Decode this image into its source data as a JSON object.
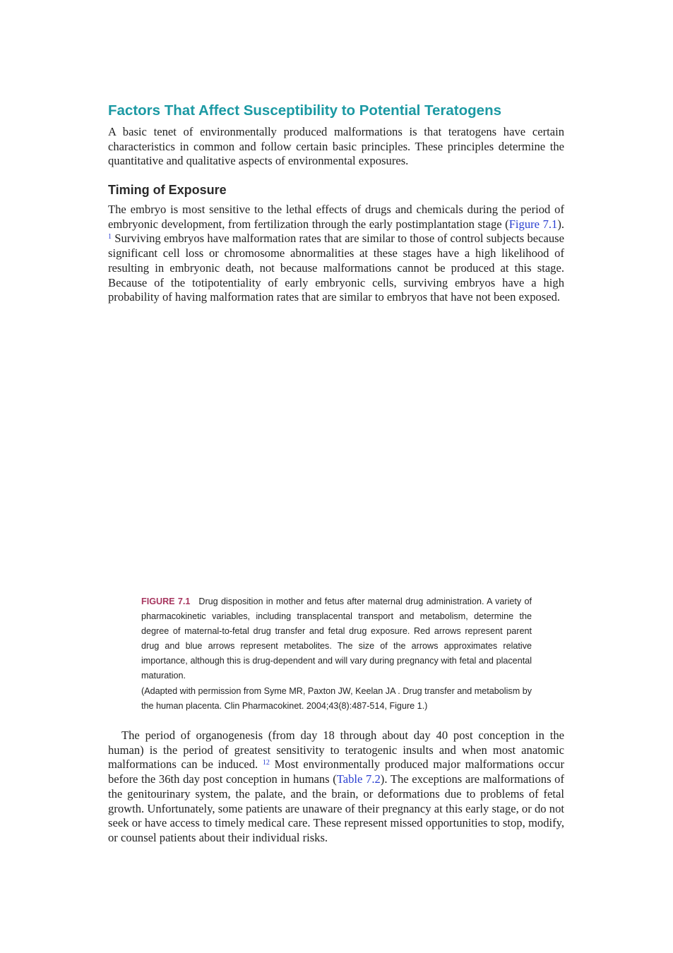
{
  "section": {
    "heading": "Factors That Affect Susceptibility to Potential Teratogens",
    "paragraph": "A basic tenet of environmentally produced malformations is that teratogens have certain characteristics in common and follow certain basic principles. These principles determine the quantitative and qualitative aspects of environmental exposures."
  },
  "subsection": {
    "heading": "Timing of Exposure",
    "parts": [
      "The embryo is most sensitive to the lethal effects of drugs and chemicals during the period of embryonic development, from fertilization through the early postimplantation stage (",
      "Figure 7.1",
      "). ",
      "1",
      " Surviving embryos have malformation rates that are similar to those of control subjects because significant cell loss or chromosome abnormalities at these stages have a high likelihood of resulting in embryonic death, not because malformations cannot be produced at this stage. Because of the totipotentiality of early embryonic cells, surviving embryos have a high probability of having malformation rates that are similar to embryos that have not been exposed."
    ]
  },
  "figure": {
    "label": "FIGURE 7.1",
    "caption": "Drug disposition in mother and fetus after maternal drug administration. A variety of pharmacokinetic variables, including transplacental transport and metabolism, determine the degree of maternal-to-fetal drug transfer and fetal drug exposure. Red arrows represent parent drug and blue arrows represent metabolites. The size of the arrows approximates relative importance, although this is drug-dependent and will vary during pregnancy with fetal and placental maturation.",
    "credit": "(Adapted with permission from Syme MR, Paxton JW, Keelan JA . Drug transfer and metabolism by the human placenta. Clin Pharmacokinet. 2004;43(8):487-514, Figure 1.)"
  },
  "body": {
    "parts": [
      "The period of organogenesis (from day 18 through about day 40 post conception in the human) is the period of greatest sensitivity to teratogenic insults and when most anatomic malformations can be induced. ",
      "12",
      " Most environmentally produced major malformations occur before the 36th day post conception in humans (",
      "Table 7.2",
      "). The exceptions are malformations of the genitourinary system, the palate, and the brain, or deformations due to problems of fetal growth. Unfortunately, some patients are unaware of their pregnancy at this early stage, or do not seek or have access to timely medical care. These represent missed opportunities to stop, modify, or counsel patients about their individual risks."
    ]
  }
}
